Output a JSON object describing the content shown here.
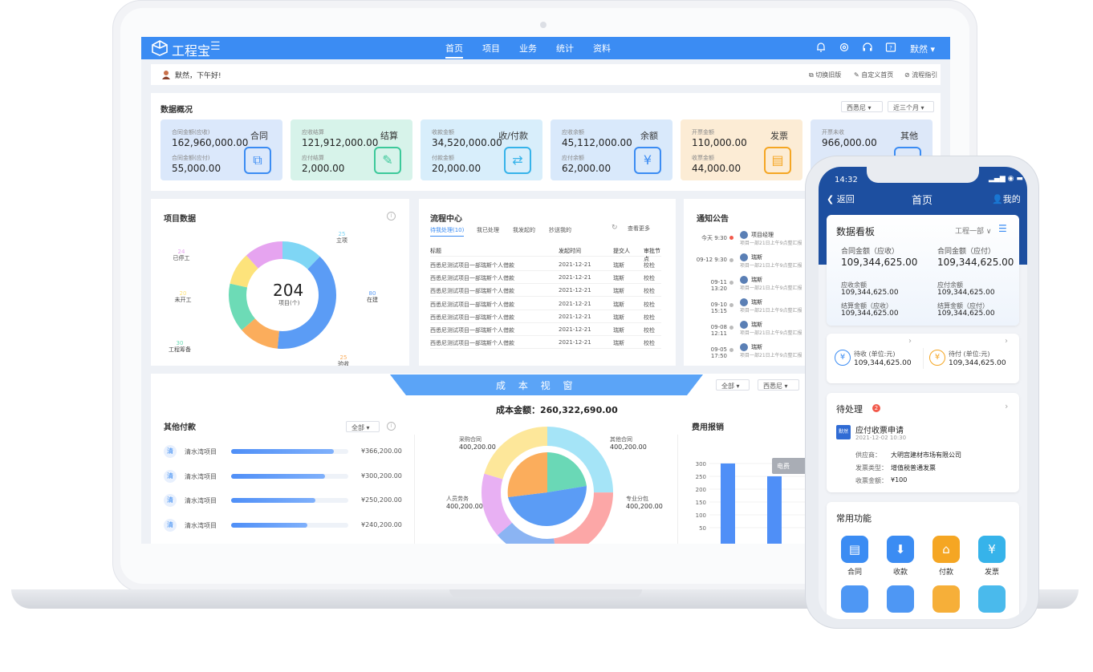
{
  "topbar": {
    "logo": "工程宝",
    "nav": [
      "首页",
      "项目",
      "业务",
      "统计",
      "资料"
    ],
    "active_nav": "首页",
    "user": "默然 ▾"
  },
  "greeting": {
    "text": "默然，下午好!",
    "links": [
      "切换旧版",
      "自定义首页",
      "流程指引"
    ]
  },
  "overview": {
    "title": "数据概况",
    "filters": [
      "西悉尼",
      "近三个月"
    ],
    "cards": [
      {
        "title": "合同",
        "l1": "合同金额(应收)",
        "v1": "162,960,000.00",
        "l2": "合同金额(应付)",
        "v2": "55,000.00",
        "icon": "contract-icon",
        "bg": "#dbe8fb",
        "color": "#3b8cf3"
      },
      {
        "title": "结算",
        "l1": "应收结算",
        "v1": "121,912,000.00",
        "l2": "应付结算",
        "v2": "2,000.00",
        "icon": "settlement-icon",
        "bg": "#d7f3ea",
        "color": "#3cc99a"
      },
      {
        "title": "收/付款",
        "l1": "收款金额",
        "v1": "34,520,000.00",
        "l2": "付款金额",
        "v2": "20,000.00",
        "icon": "payment-icon",
        "bg": "#d8eefb",
        "color": "#36b3ea"
      },
      {
        "title": "余额",
        "l1": "应收余额",
        "v1": "45,112,000.00",
        "l2": "应付余额",
        "v2": "62,000.00",
        "icon": "balance-icon",
        "bg": "#d9e9fb",
        "color": "#3b8cf3"
      },
      {
        "title": "发票",
        "l1": "开票金额",
        "v1": "110,000.00",
        "l2": "收票金额",
        "v2": "44,000.00",
        "icon": "invoice-icon",
        "bg": "#fcecd5",
        "color": "#f5a623"
      },
      {
        "title": "其他",
        "l1": "开票未收",
        "v1": "966,000.00",
        "l2": "",
        "v2": "",
        "icon": "other-icon",
        "bg": "#dde8f9",
        "color": "#3b8cf3"
      }
    ]
  },
  "project_data": {
    "title": "项目数据",
    "center_value": "204",
    "center_label": "项目(个)",
    "slices": [
      {
        "label": "立项",
        "value": 25,
        "color": "#7fd6f5"
      },
      {
        "label": "在建",
        "value": 80,
        "color": "#5b9cf5"
      },
      {
        "label": "验收",
        "value": 25,
        "color": "#fbad5c"
      },
      {
        "label": "工程筹备",
        "value": 30,
        "color": "#6ddbb6"
      },
      {
        "label": "未开工",
        "value": 20,
        "color": "#fde37b"
      },
      {
        "label": "已停工",
        "value": 24,
        "color": "#e6a4f0"
      }
    ]
  },
  "process_center": {
    "title": "流程中心",
    "tabs": [
      "待我处理(10)",
      "我已处理",
      "我发起的",
      "抄送我的"
    ],
    "more": "查看更多",
    "columns": [
      "标题",
      "发起时间",
      "提交人",
      "审批节点"
    ],
    "rows": [
      [
        "西悉尼测试项目一部瑞斯个人借款",
        "2021-12-21",
        "瑞斯",
        "校检"
      ],
      [
        "西悉尼测试项目一部瑞斯个人借款",
        "2021-12-21",
        "瑞斯",
        "校检"
      ],
      [
        "西悉尼测试项目一部瑞斯个人借款",
        "2021-12-21",
        "瑞斯",
        "校检"
      ],
      [
        "西悉尼测试项目一部瑞斯个人借款",
        "2021-12-21",
        "瑞斯",
        "校检"
      ],
      [
        "西悉尼测试项目一部瑞斯个人借款",
        "2021-12-21",
        "瑞斯",
        "校检"
      ],
      [
        "西悉尼测试项目一部瑞斯个人借款",
        "2021-12-21",
        "瑞斯",
        "校检"
      ],
      [
        "西悉尼测试项目一部瑞斯个人借款",
        "2021-12-21",
        "瑞斯",
        "校检"
      ]
    ]
  },
  "notices": {
    "title": "通知公告",
    "items": [
      {
        "time": "今天 9:30",
        "author": "项目经理",
        "text": "项目一部21日上午9点整汇报",
        "red": true
      },
      {
        "time": "09-12 9:30",
        "author": "瑞斯",
        "text": "项目一部21日上午9点整汇报",
        "red": false
      },
      {
        "time": "09-11 13:20",
        "author": "瑞斯",
        "text": "项目一部21日上午9点整汇报",
        "red": false
      },
      {
        "time": "09-10 15:15",
        "author": "瑞斯",
        "text": "项目一部21日上午9点整汇报",
        "red": false
      },
      {
        "time": "09-08 12:11",
        "author": "瑞斯",
        "text": "项目一部21日上午9点整汇报",
        "red": false
      },
      {
        "time": "09-05 17:50",
        "author": "瑞斯",
        "text": "项目一部21日上午9点整汇报",
        "red": false
      }
    ]
  },
  "cost_window": {
    "banner": "成 本 视 窗",
    "filters": [
      "全部",
      "西悉尼"
    ],
    "total": "成本金额：260,322,690.00",
    "labels": [
      {
        "name": "采购合同",
        "value": "400,200.00"
      },
      {
        "name": "其他合同",
        "value": "400,200.00"
      },
      {
        "name": "人员劳务",
        "value": "400,200.00"
      },
      {
        "name": "专业分包",
        "value": "400,200.00"
      }
    ]
  },
  "other_payments": {
    "title": "其他付款",
    "filter": "全部",
    "rows": [
      {
        "badge": "清",
        "name": "清水湾项目",
        "amount": "¥366,200.00",
        "pct": 0.88
      },
      {
        "badge": "清",
        "name": "清水湾项目",
        "amount": "¥300,200.00",
        "pct": 0.8
      },
      {
        "badge": "清",
        "name": "清水湾项目",
        "amount": "¥250,200.00",
        "pct": 0.72
      },
      {
        "badge": "清",
        "name": "清水湾项目",
        "amount": "¥240,200.00",
        "pct": 0.65
      }
    ]
  },
  "expense": {
    "title": "费用报销",
    "tooltip": "电费",
    "chart_data": {
      "type": "bar",
      "y_ticks": [
        300,
        250,
        200,
        150,
        100,
        50
      ],
      "values": [
        300,
        250
      ],
      "ylim": [
        0,
        300
      ]
    }
  },
  "phone": {
    "time": "14:32",
    "back": "返回",
    "title": "首页",
    "me": "我的",
    "board_title": "数据看板",
    "dept": "工程一部",
    "contract_recv_label": "合同金额（应收）",
    "contract_recv": "109,344,625.00",
    "contract_pay_label": "合同金额（应付）",
    "contract_pay": "109,344,625.00",
    "recv_balance_label": "应收余额",
    "recv_balance": "109,344,625.00",
    "pay_balance_label": "应付余额",
    "pay_balance": "109,344,625.00",
    "settle_recv_label": "结算金额（应收）",
    "settle_recv": "109,344,625.00",
    "settle_pay_label": "结算金额（应付）",
    "settle_pay": "109,344,625.00",
    "pending_recv_label": "待收 (单位:元)",
    "pending_recv": "109,344,625.00",
    "pending_pay_label": "待付 (单位:元)",
    "pending_pay": "109,344,625.00",
    "todo_title": "待处理",
    "todo_count": "2",
    "todo_avatar": "默然",
    "todo_item": "应付收票申请",
    "todo_time": "2021-12-02 10:30",
    "supplier_label": "供应商：",
    "supplier": "大明宫建材市场有限公司",
    "invoice_type_label": "发票类型：",
    "invoice_type": "增值税普通发票",
    "amount_label": "收票金额：",
    "amount": "¥100",
    "functions_title": "常用功能",
    "functions": [
      {
        "label": "合同",
        "icon": "contract-icon",
        "color": "#3b8cf3"
      },
      {
        "label": "收款",
        "icon": "receive-icon",
        "color": "#3b8cf3"
      },
      {
        "label": "付款",
        "icon": "pay-icon",
        "color": "#f5a623"
      },
      {
        "label": "发票",
        "icon": "invoice-icon",
        "color": "#36b3ea"
      }
    ]
  }
}
